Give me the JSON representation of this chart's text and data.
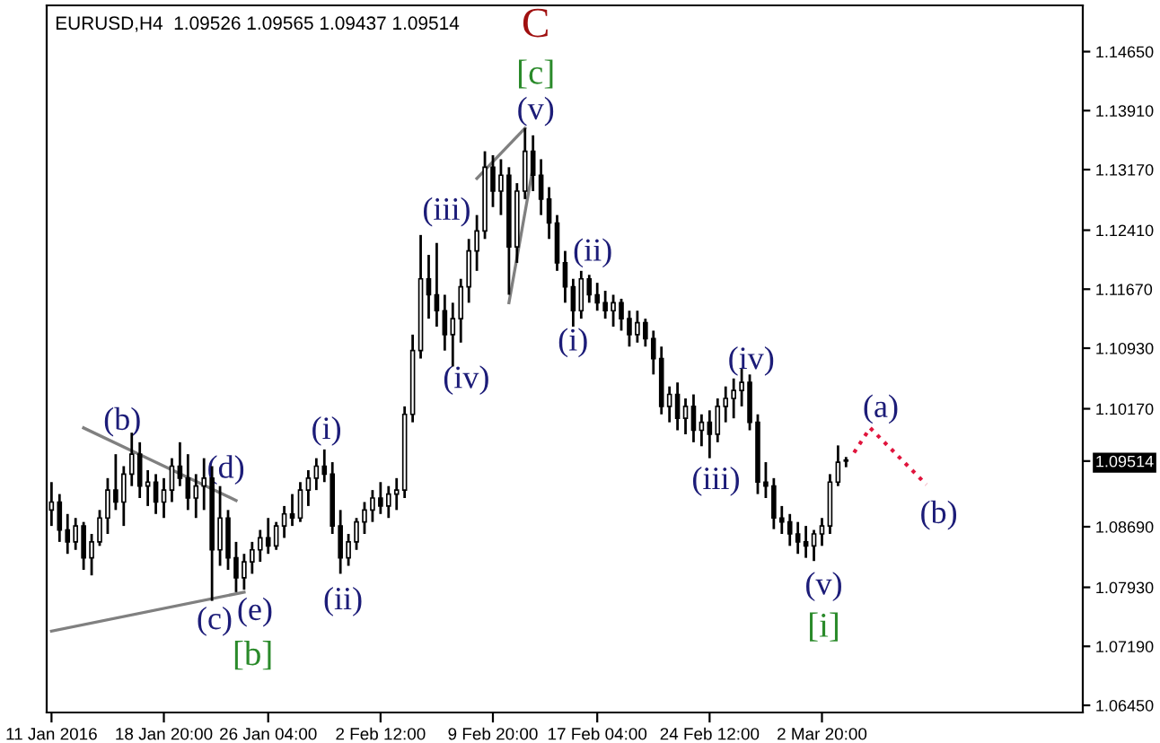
{
  "chart_data": {
    "type": "candlestick",
    "title": "EURUSD,H4  1.09526 1.09565 1.09437 1.09514",
    "color": "#000000",
    "categories": [
      "11 Jan 2016",
      null,
      null,
      null,
      null,
      null,
      null,
      null,
      null,
      null,
      null,
      null,
      null,
      null,
      "18 Jan 20:00",
      null,
      null,
      null,
      null,
      null,
      null,
      null,
      null,
      null,
      null,
      null,
      null,
      "26 Jan 04:00",
      null,
      null,
      null,
      null,
      null,
      null,
      null,
      null,
      null,
      null,
      null,
      null,
      null,
      "2 Feb 12:00",
      null,
      null,
      null,
      null,
      null,
      null,
      null,
      null,
      null,
      null,
      null,
      null,
      null,
      "9 Feb 20:00",
      null,
      null,
      null,
      null,
      null,
      null,
      null,
      null,
      null,
      null,
      null,
      null,
      "17 Feb 04:00",
      null,
      null,
      null,
      null,
      null,
      null,
      null,
      null,
      null,
      null,
      null,
      null,
      null,
      "24 Feb 12:00",
      null,
      null,
      null,
      null,
      null,
      null,
      null,
      null,
      null,
      null,
      null,
      null,
      null,
      "2 Mar 20:00",
      null,
      null,
      null,
      null,
      null,
      null,
      null,
      null,
      null,
      null,
      null,
      null,
      null,
      null,
      null,
      null,
      null,
      null,
      null,
      null,
      null,
      null,
      null,
      null,
      null,
      null,
      null,
      null,
      null,
      null,
      null,
      null
    ],
    "ohlc": [
      [
        1.089,
        1.0925,
        1.087,
        1.09
      ],
      [
        1.09,
        1.091,
        1.085,
        1.0865
      ],
      [
        1.0865,
        1.0885,
        1.0835,
        1.085
      ],
      [
        1.085,
        1.088,
        1.084,
        1.087
      ],
      [
        1.087,
        1.0875,
        1.0815,
        1.083
      ],
      [
        1.083,
        1.086,
        1.0808,
        1.085
      ],
      [
        1.085,
        1.089,
        1.0845,
        1.088
      ],
      [
        1.088,
        1.093,
        1.086,
        1.0915
      ],
      [
        1.0915,
        1.096,
        1.089,
        1.09
      ],
      [
        1.09,
        1.0945,
        1.087,
        1.0935
      ],
      [
        1.0935,
        1.0987,
        1.092,
        1.096
      ],
      [
        1.096,
        1.0975,
        1.0905,
        1.092
      ],
      [
        1.092,
        1.094,
        1.0895,
        1.0925
      ],
      [
        1.0925,
        1.0935,
        1.0885,
        1.09
      ],
      [
        1.09,
        1.093,
        1.088,
        1.0915
      ],
      [
        1.0915,
        1.0955,
        1.09,
        1.0945
      ],
      [
        1.0945,
        1.0975,
        1.092,
        1.093
      ],
      [
        1.093,
        1.096,
        1.089,
        1.0905
      ],
      [
        1.0905,
        1.0935,
        1.088,
        1.092
      ],
      [
        1.092,
        1.0955,
        1.089,
        1.093
      ],
      [
        1.093,
        1.0945,
        1.0776,
        1.084
      ],
      [
        1.084,
        1.092,
        1.082,
        1.088
      ],
      [
        1.088,
        1.089,
        1.0815,
        1.083
      ],
      [
        1.083,
        1.085,
        1.0787,
        1.0805
      ],
      [
        1.0805,
        1.0835,
        1.079,
        1.0825
      ],
      [
        1.0825,
        1.085,
        1.081,
        1.084
      ],
      [
        1.084,
        1.0865,
        1.0825,
        1.0855
      ],
      [
        1.0855,
        1.088,
        1.0835,
        1.0845
      ],
      [
        1.0845,
        1.0875,
        1.084,
        1.087
      ],
      [
        1.087,
        1.0895,
        1.0855,
        1.0885
      ],
      [
        1.0885,
        1.091,
        1.087,
        1.088
      ],
      [
        1.088,
        1.0925,
        1.0875,
        1.0915
      ],
      [
        1.0915,
        1.094,
        1.0895,
        1.093
      ],
      [
        1.093,
        1.0955,
        1.0915,
        1.0945
      ],
      [
        1.0945,
        1.0966,
        1.0925,
        1.0935
      ],
      [
        1.0935,
        1.095,
        1.086,
        1.087
      ],
      [
        1.087,
        1.089,
        1.081,
        1.083
      ],
      [
        1.083,
        1.086,
        1.082,
        1.085
      ],
      [
        1.085,
        1.088,
        1.084,
        1.0875
      ],
      [
        1.0875,
        1.09,
        1.086,
        1.089
      ],
      [
        1.089,
        1.0915,
        1.0875,
        1.0905
      ],
      [
        1.0905,
        1.0925,
        1.0885,
        1.0895
      ],
      [
        1.0895,
        1.092,
        1.088,
        1.091
      ],
      [
        1.091,
        1.093,
        1.089,
        1.0915
      ],
      [
        1.0915,
        1.102,
        1.0905,
        1.101
      ],
      [
        1.101,
        1.111,
        1.1,
        1.109
      ],
      [
        1.109,
        1.1235,
        1.108,
        1.118
      ],
      [
        1.118,
        1.121,
        1.113,
        1.116
      ],
      [
        1.116,
        1.1225,
        1.112,
        1.114
      ],
      [
        1.114,
        1.116,
        1.109,
        1.111
      ],
      [
        1.111,
        1.115,
        1.107,
        1.113
      ],
      [
        1.113,
        1.118,
        1.11,
        1.117
      ],
      [
        1.117,
        1.123,
        1.115,
        1.1215
      ],
      [
        1.1215,
        1.126,
        1.119,
        1.124
      ],
      [
        1.124,
        1.134,
        1.123,
        1.132
      ],
      [
        1.132,
        1.1335,
        1.127,
        1.129
      ],
      [
        1.129,
        1.133,
        1.126,
        1.131
      ],
      [
        1.131,
        1.132,
        1.116,
        1.122
      ],
      [
        1.122,
        1.13,
        1.12,
        1.129
      ],
      [
        1.129,
        1.1369,
        1.128,
        1.134
      ],
      [
        1.134,
        1.136,
        1.129,
        1.131
      ],
      [
        1.131,
        1.133,
        1.126,
        1.128
      ],
      [
        1.128,
        1.1295,
        1.123,
        1.125
      ],
      [
        1.125,
        1.126,
        1.119,
        1.12
      ],
      [
        1.12,
        1.1215,
        1.115,
        1.117
      ],
      [
        1.117,
        1.118,
        1.112,
        1.114
      ],
      [
        1.114,
        1.119,
        1.113,
        1.118
      ],
      [
        1.118,
        1.1185,
        1.115,
        1.116
      ],
      [
        1.116,
        1.1175,
        1.114,
        1.115
      ],
      [
        1.115,
        1.1165,
        1.113,
        1.114
      ],
      [
        1.114,
        1.116,
        1.112,
        1.115
      ],
      [
        1.115,
        1.1155,
        1.1115,
        1.113
      ],
      [
        1.113,
        1.114,
        1.1095,
        1.111
      ],
      [
        1.111,
        1.114,
        1.11,
        1.1125
      ],
      [
        1.1125,
        1.113,
        1.1095,
        1.1105
      ],
      [
        1.1105,
        1.1115,
        1.106,
        1.108
      ],
      [
        1.108,
        1.1095,
        1.101,
        1.102
      ],
      [
        1.102,
        1.1045,
        1.1,
        1.1035
      ],
      [
        1.1035,
        1.105,
        1.099,
        1.1005
      ],
      [
        1.1005,
        1.103,
        1.0985,
        1.102
      ],
      [
        1.102,
        1.1035,
        1.0975,
        1.099
      ],
      [
        1.099,
        1.101,
        1.097,
        1.1
      ],
      [
        1.1,
        1.1015,
        1.0955,
        1.0985
      ],
      [
        1.0985,
        1.103,
        1.0975,
        1.102
      ],
      [
        1.102,
        1.1045,
        1.1,
        1.103
      ],
      [
        1.103,
        1.1055,
        1.1005,
        1.104
      ],
      [
        1.104,
        1.1067,
        1.102,
        1.105
      ],
      [
        1.105,
        1.106,
        1.099,
        1.1
      ],
      [
        1.1,
        1.101,
        1.091,
        1.0925
      ],
      [
        1.0925,
        1.095,
        1.0905,
        1.092
      ],
      [
        1.092,
        1.093,
        1.0866,
        1.088
      ],
      [
        1.088,
        1.0895,
        1.086,
        1.0875
      ],
      [
        1.0875,
        1.0885,
        1.0845,
        1.086
      ],
      [
        1.086,
        1.0875,
        1.0835,
        1.085
      ],
      [
        1.085,
        1.087,
        1.083,
        1.0845
      ],
      [
        1.0845,
        1.0865,
        1.0826,
        1.086
      ],
      [
        1.086,
        1.088,
        1.0845,
        1.087
      ],
      [
        1.087,
        1.0935,
        1.086,
        1.0925
      ],
      [
        1.0925,
        1.0971,
        1.092,
        1.095
      ],
      [
        1.09526,
        1.09565,
        1.09437,
        1.09514
      ],
      null,
      null,
      null,
      null,
      null,
      null,
      null,
      null,
      null,
      null,
      null,
      null,
      null,
      null,
      null,
      null,
      null,
      null,
      null,
      null,
      null,
      null,
      null,
      null,
      null,
      null,
      null,
      null,
      null
    ],
    "series": [
      {
        "type": "line",
        "color": "#808080",
        "line_style": "solid",
        "values": [
          1.0738,
          null,
          null,
          null,
          null,
          null,
          null,
          null,
          null,
          null,
          null,
          null,
          null,
          null,
          null,
          null,
          null,
          null,
          null,
          null,
          null,
          null,
          null,
          null,
          1.0787,
          null,
          null,
          null,
          null,
          null,
          null,
          null,
          null,
          null,
          null,
          null,
          null,
          null,
          null,
          null,
          null,
          null,
          null,
          null,
          null,
          null,
          null,
          null,
          null,
          null,
          null,
          null,
          null,
          null,
          null,
          null,
          null,
          null,
          null,
          null,
          null,
          null,
          null,
          null,
          null,
          null,
          null,
          null,
          null,
          null,
          null,
          null,
          null,
          null,
          null,
          null,
          null,
          null,
          null,
          null,
          null,
          null,
          null,
          null,
          null,
          null,
          null,
          null,
          null,
          null,
          null,
          null,
          null,
          null,
          null,
          null,
          null,
          null,
          null,
          null,
          null,
          null,
          null,
          null,
          null,
          null,
          null,
          null,
          null,
          null,
          null,
          null,
          null,
          null,
          null,
          null,
          null,
          null,
          null,
          null,
          null,
          null,
          null,
          null,
          null,
          null,
          null,
          null,
          null
        ]
      },
      {
        "type": "line",
        "color": "#808080",
        "line_style": "solid",
        "values": [
          null,
          null,
          null,
          null,
          1.0993,
          null,
          null,
          null,
          null,
          null,
          null,
          null,
          null,
          null,
          null,
          null,
          null,
          null,
          null,
          null,
          null,
          null,
          null,
          1.0902,
          null,
          null,
          null,
          null,
          null,
          null,
          null,
          null,
          null,
          null,
          null,
          null,
          null,
          null,
          null,
          null,
          null,
          null,
          null,
          null,
          null,
          null,
          null,
          null,
          null,
          null,
          null,
          null,
          null,
          null,
          null,
          null,
          null,
          null,
          null,
          null,
          null,
          null,
          null,
          null,
          null,
          null,
          null,
          null,
          null,
          null,
          null,
          null,
          null,
          null,
          null,
          null,
          null,
          null,
          null,
          null,
          null,
          null,
          null,
          null,
          null,
          null,
          null,
          null,
          null,
          null,
          null,
          null,
          null,
          null,
          null,
          null,
          null,
          null,
          null,
          null,
          null,
          null,
          null,
          null,
          null,
          null,
          null,
          null,
          null,
          null,
          null,
          null,
          null,
          null,
          null,
          null,
          null,
          null,
          null,
          null,
          null,
          null,
          null,
          null,
          null,
          null,
          null,
          null,
          null
        ]
      },
      {
        "type": "line",
        "color": "#808080",
        "line_style": "solid",
        "values": [
          null,
          null,
          null,
          null,
          null,
          null,
          null,
          null,
          null,
          null,
          null,
          null,
          null,
          null,
          null,
          null,
          null,
          null,
          null,
          null,
          null,
          null,
          null,
          null,
          null,
          null,
          null,
          null,
          null,
          null,
          null,
          null,
          null,
          null,
          null,
          null,
          null,
          null,
          null,
          null,
          null,
          null,
          null,
          null,
          null,
          null,
          null,
          null,
          null,
          null,
          null,
          null,
          null,
          1.1306,
          null,
          null,
          null,
          null,
          null,
          1.1369,
          null,
          null,
          null,
          null,
          null,
          null,
          null,
          null,
          null,
          null,
          null,
          null,
          null,
          null,
          null,
          null,
          null,
          null,
          null,
          null,
          null,
          null,
          null,
          null,
          null,
          null,
          null,
          null,
          null,
          null,
          null,
          null,
          null,
          null,
          null,
          null,
          null,
          null,
          null,
          null,
          null,
          null,
          null,
          null,
          null,
          null,
          null,
          null,
          null,
          null,
          null,
          null,
          null,
          null,
          null,
          null,
          null,
          null,
          null,
          null,
          null,
          null,
          null,
          null,
          null,
          null,
          null,
          null,
          null
        ]
      },
      {
        "type": "line",
        "color": "#808080",
        "line_style": "solid",
        "values": [
          null,
          null,
          null,
          null,
          null,
          null,
          null,
          null,
          null,
          null,
          null,
          null,
          null,
          null,
          null,
          null,
          null,
          null,
          null,
          null,
          null,
          null,
          null,
          null,
          null,
          null,
          null,
          null,
          null,
          null,
          null,
          null,
          null,
          null,
          null,
          null,
          null,
          null,
          null,
          null,
          null,
          null,
          null,
          null,
          null,
          null,
          null,
          null,
          null,
          null,
          null,
          null,
          null,
          null,
          null,
          null,
          null,
          1.115,
          null,
          null,
          1.132,
          null,
          null,
          null,
          null,
          null,
          null,
          null,
          null,
          null,
          null,
          null,
          null,
          null,
          null,
          null,
          null,
          null,
          null,
          null,
          null,
          null,
          null,
          null,
          null,
          null,
          null,
          null,
          null,
          null,
          null,
          null,
          null,
          null,
          null,
          null,
          null,
          null,
          null,
          null,
          null,
          null,
          null,
          null,
          null,
          null,
          null,
          null,
          null,
          null,
          null,
          null,
          null,
          null,
          null,
          null,
          null,
          null,
          null,
          null,
          null,
          null,
          null,
          null,
          null,
          null,
          null,
          null,
          null
        ]
      },
      {
        "type": "line",
        "color": "#e0143c",
        "line_style": "dotted",
        "values": [
          null,
          null,
          null,
          null,
          null,
          null,
          null,
          null,
          null,
          null,
          null,
          null,
          null,
          null,
          null,
          null,
          null,
          null,
          null,
          null,
          null,
          null,
          null,
          null,
          null,
          null,
          null,
          null,
          null,
          null,
          null,
          null,
          null,
          null,
          null,
          null,
          null,
          null,
          null,
          null,
          null,
          null,
          null,
          null,
          null,
          null,
          null,
          null,
          null,
          null,
          null,
          null,
          null,
          null,
          null,
          null,
          null,
          null,
          null,
          null,
          null,
          null,
          null,
          null,
          null,
          null,
          null,
          null,
          null,
          null,
          null,
          null,
          null,
          null,
          null,
          null,
          null,
          null,
          null,
          null,
          null,
          null,
          null,
          null,
          null,
          null,
          null,
          null,
          null,
          null,
          null,
          null,
          null,
          null,
          null,
          null,
          null,
          null,
          null,
          null,
          1.0962,
          null,
          1.0993,
          null,
          null,
          null,
          null,
          null,
          null,
          1.0922,
          null,
          null,
          null,
          null,
          null,
          null,
          null,
          null,
          null,
          null,
          null,
          null,
          null,
          null,
          null,
          null,
          null,
          null,
          null
        ]
      }
    ],
    "ylim": [
      1.0636,
      1.1523
    ],
    "yticks": [
      {
        "value": 1.0645,
        "label": "1.06450"
      },
      {
        "value": 1.0719,
        "label": "1.07190"
      },
      {
        "value": 1.0793,
        "label": "1.07930"
      },
      {
        "value": 1.0869,
        "label": "1.08690"
      },
      {
        "value": 1.09514,
        "label": "1.09514"
      },
      {
        "value": 1.1017,
        "label": "1.10170"
      },
      {
        "value": 1.1093,
        "label": "1.10930"
      },
      {
        "value": 1.1167,
        "label": "1.11670"
      },
      {
        "value": 1.1241,
        "label": "1.12410"
      },
      {
        "value": 1.1317,
        "label": "1.13170"
      },
      {
        "value": 1.1391,
        "label": "1.13910"
      },
      {
        "value": 1.1465,
        "label": "1.14650"
      }
    ],
    "annotations": [
      "(b)",
      "(d)",
      "(c)",
      "(e)",
      "[b]",
      "(i)",
      "(ii)",
      "(iii)",
      "(iv)",
      "C",
      "[c]",
      "(v)",
      "(ii)",
      "(i)",
      "(iv)",
      "(iii)",
      "(v)",
      "[i]",
      "(a)",
      "(b)"
    ],
    "grid": false,
    "legend": false
  }
}
